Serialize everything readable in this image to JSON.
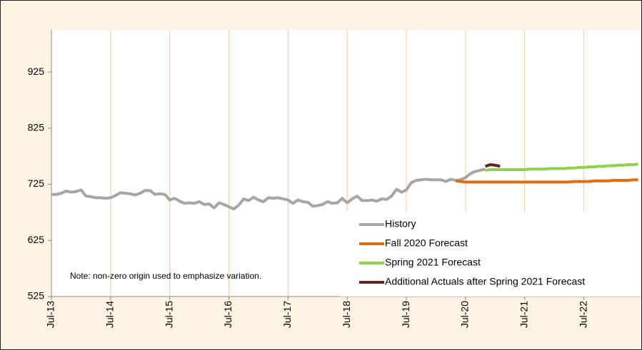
{
  "chart_data": {
    "type": "line",
    "note": "Note: non-zero origin used to emphasize variation.",
    "categories": [
      "Jul-13",
      null,
      null,
      null,
      null,
      null,
      null,
      null,
      null,
      null,
      null,
      null,
      "Jul-14",
      null,
      null,
      null,
      null,
      null,
      null,
      null,
      null,
      null,
      null,
      null,
      "Jul-15",
      null,
      null,
      null,
      null,
      null,
      null,
      null,
      null,
      null,
      null,
      null,
      "Jul-16",
      null,
      null,
      null,
      null,
      null,
      null,
      null,
      null,
      null,
      null,
      null,
      "Jul-17",
      null,
      null,
      null,
      null,
      null,
      null,
      null,
      null,
      null,
      null,
      null,
      "Jul-18",
      null,
      null,
      null,
      null,
      null,
      null,
      null,
      null,
      null,
      null,
      null,
      "Jul-19",
      null,
      null,
      null,
      null,
      null,
      null,
      null,
      null,
      null,
      null,
      null,
      "Jul-20",
      null,
      null,
      null,
      null,
      null,
      null,
      null,
      null,
      null,
      null,
      null,
      "Jul-21",
      null,
      null,
      null,
      null,
      null,
      null,
      null,
      null,
      null,
      null,
      null,
      "Jul-22",
      null,
      null,
      null,
      null,
      null,
      null,
      null,
      null,
      null,
      null,
      null
    ],
    "series": [
      {
        "name": "History",
        "color": "#a6a6a6",
        "values": [
          707,
          707,
          709,
          713,
          711,
          712,
          715,
          704,
          703,
          701,
          701,
          700,
          701,
          705,
          710,
          709,
          708,
          706,
          709,
          714,
          714,
          707,
          708,
          707,
          697,
          700,
          695,
          691,
          692,
          691,
          694,
          689,
          690,
          683,
          692,
          689,
          685,
          681,
          688,
          699,
          696,
          702,
          697,
          694,
          701,
          700,
          701,
          699,
          697,
          691,
          697,
          694,
          693,
          686,
          687,
          689,
          694,
          691,
          692,
          700,
          692,
          699,
          704,
          696,
          696,
          697,
          695,
          699,
          698,
          704,
          716,
          711,
          715,
          728,
          732,
          733,
          734,
          733,
          733,
          733,
          730,
          734,
          732,
          733,
          737,
          744,
          748,
          750,
          752,
          null,
          null,
          null,
          null,
          null,
          null,
          null,
          null,
          null,
          null,
          null,
          null,
          null,
          null,
          null,
          null,
          null,
          null,
          null,
          null,
          null,
          null,
          null,
          null,
          null,
          null,
          null,
          null,
          null,
          null,
          null
        ]
      },
      {
        "name": "Fall 2020 Forecast",
        "color": "#e46c0a",
        "values": [
          null,
          null,
          null,
          null,
          null,
          null,
          null,
          null,
          null,
          null,
          null,
          null,
          null,
          null,
          null,
          null,
          null,
          null,
          null,
          null,
          null,
          null,
          null,
          null,
          null,
          null,
          null,
          null,
          null,
          null,
          null,
          null,
          null,
          null,
          null,
          null,
          null,
          null,
          null,
          null,
          null,
          null,
          null,
          null,
          null,
          null,
          null,
          null,
          null,
          null,
          null,
          null,
          null,
          null,
          null,
          null,
          null,
          null,
          null,
          null,
          null,
          null,
          null,
          null,
          null,
          null,
          null,
          null,
          null,
          null,
          null,
          null,
          null,
          null,
          null,
          null,
          null,
          null,
          null,
          null,
          null,
          null,
          731,
          730,
          729,
          729,
          729,
          729,
          729,
          729,
          729,
          729,
          729,
          729,
          729,
          729,
          729,
          729,
          729,
          729,
          729,
          729,
          729,
          729,
          729,
          729,
          730,
          730,
          730,
          730,
          731,
          731,
          731,
          731,
          732,
          732,
          732,
          732,
          733,
          733
        ]
      },
      {
        "name": "Spring 2021 Forecast",
        "color": "#92d050",
        "values": [
          null,
          null,
          null,
          null,
          null,
          null,
          null,
          null,
          null,
          null,
          null,
          null,
          null,
          null,
          null,
          null,
          null,
          null,
          null,
          null,
          null,
          null,
          null,
          null,
          null,
          null,
          null,
          null,
          null,
          null,
          null,
          null,
          null,
          null,
          null,
          null,
          null,
          null,
          null,
          null,
          null,
          null,
          null,
          null,
          null,
          null,
          null,
          null,
          null,
          null,
          null,
          null,
          null,
          null,
          null,
          null,
          null,
          null,
          null,
          null,
          null,
          null,
          null,
          null,
          null,
          null,
          null,
          null,
          null,
          null,
          null,
          null,
          null,
          null,
          null,
          null,
          null,
          null,
          null,
          null,
          null,
          null,
          null,
          null,
          null,
          null,
          null,
          null,
          750,
          751,
          751,
          751,
          751,
          751,
          751,
          751,
          751,
          752,
          752,
          752,
          752,
          753,
          753,
          753,
          753,
          754,
          754,
          755,
          755,
          756,
          756,
          757,
          757,
          758,
          758,
          759,
          759,
          760,
          760,
          761
        ]
      },
      {
        "name": "Additional Actuals after Spring 2021 Forecast",
        "color": "#632523",
        "values": [
          null,
          null,
          null,
          null,
          null,
          null,
          null,
          null,
          null,
          null,
          null,
          null,
          null,
          null,
          null,
          null,
          null,
          null,
          null,
          null,
          null,
          null,
          null,
          null,
          null,
          null,
          null,
          null,
          null,
          null,
          null,
          null,
          null,
          null,
          null,
          null,
          null,
          null,
          null,
          null,
          null,
          null,
          null,
          null,
          null,
          null,
          null,
          null,
          null,
          null,
          null,
          null,
          null,
          null,
          null,
          null,
          null,
          null,
          null,
          null,
          null,
          null,
          null,
          null,
          null,
          null,
          null,
          null,
          null,
          null,
          null,
          null,
          null,
          null,
          null,
          null,
          null,
          null,
          null,
          null,
          null,
          null,
          null,
          null,
          null,
          null,
          null,
          null,
          757,
          760,
          759,
          757,
          null,
          null,
          null,
          null,
          null,
          null,
          null,
          null,
          null,
          null,
          null,
          null,
          null,
          null,
          null,
          null,
          null,
          null,
          null,
          null,
          null,
          null,
          null,
          null,
          null,
          null,
          null,
          null
        ]
      }
    ],
    "ylim": [
      525,
      1000
    ],
    "yticks": [
      525,
      625,
      725,
      825,
      925
    ],
    "xgrid": true,
    "legend": "lower right"
  }
}
